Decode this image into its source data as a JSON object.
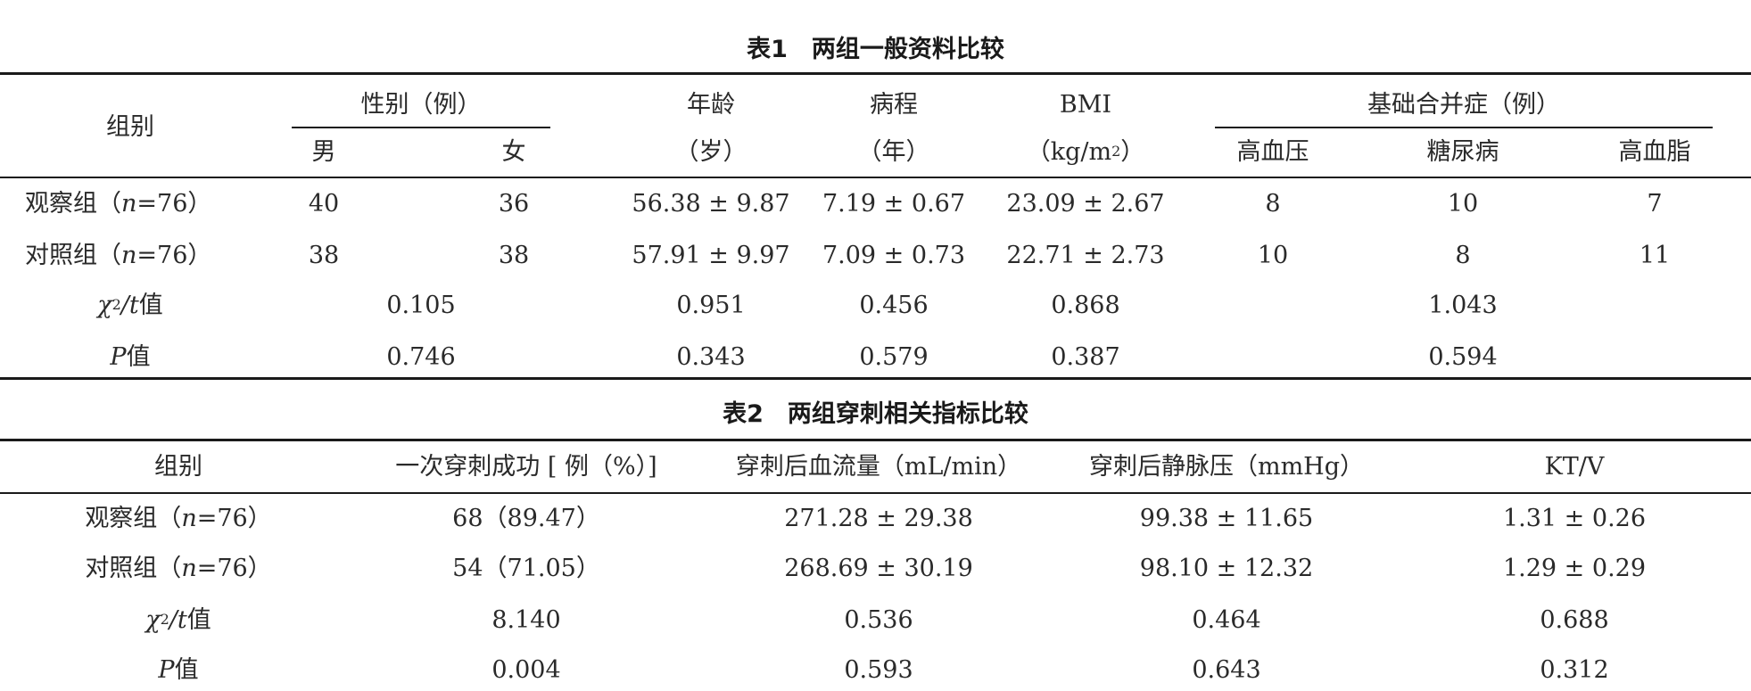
{
  "table1": {
    "caption": "表1　两组一般资料比较",
    "headers": {
      "group": "组别",
      "sex": "性别（例）",
      "male": "男",
      "female": "女",
      "age_top": "年龄",
      "age_unit": "（岁）",
      "course_top": "病程",
      "course_unit": "（年）",
      "bmi_top": "BMI",
      "bmi_unit_pre": "（kg/m",
      "bmi_unit_sup": "2",
      "bmi_unit_post": "）",
      "comorbid": "基础合并症（例）",
      "hypertension": "高血压",
      "diabetes": "糖尿病",
      "hyperlipidemia": "高血脂"
    },
    "obs": {
      "label_pre": "观察组（",
      "label_n": "n",
      "label_post": "=76）",
      "male": "40",
      "female": "36",
      "age": "56.38 ± 9.87",
      "course": "7.19 ± 0.67",
      "bmi": "23.09 ± 2.67",
      "hypertension": "8",
      "diabetes": "10",
      "hyperlipidemia": "7"
    },
    "ctrl": {
      "label_pre": "对照组（",
      "label_n": "n",
      "label_post": "=76）",
      "male": "38",
      "female": "38",
      "age": "57.91 ± 9.97",
      "course": "7.09 ± 0.73",
      "bmi": "22.71 ± 2.73",
      "hypertension": "10",
      "diabetes": "8",
      "hyperlipidemia": "11"
    },
    "chi": {
      "sym": "χ",
      "sup": "2",
      "slash_t": "/t",
      "suffix": " 值",
      "sex": "0.105",
      "age": "0.951",
      "course": "0.456",
      "bmi": "0.868",
      "comorbid": "1.043"
    },
    "p": {
      "sym": "P",
      "suffix": " 值",
      "sex": "0.746",
      "age": "0.343",
      "course": "0.579",
      "bmi": "0.387",
      "comorbid": "0.594"
    }
  },
  "table2": {
    "caption": "表2　两组穿刺相关指标比较",
    "headers": {
      "group": "组别",
      "first_success": "一次穿刺成功 [ 例（%）]",
      "blood_flow": "穿刺后血流量（mL/min）",
      "venous_pressure": "穿刺后静脉压（mmHg）",
      "ktv": "KT/V"
    },
    "obs": {
      "label_pre": "观察组（",
      "label_n": "n",
      "label_post": "=76）",
      "first_success": "68（89.47）",
      "blood_flow": "271.28 ± 29.38",
      "venous_pressure": "99.38 ± 11.65",
      "ktv": "1.31 ± 0.26"
    },
    "ctrl": {
      "label_pre": "对照组（",
      "label_n": "n",
      "label_post": "=76）",
      "first_success": "54（71.05）",
      "blood_flow": "268.69 ± 30.19",
      "venous_pressure": "98.10 ± 12.32",
      "ktv": "1.29 ± 0.29"
    },
    "chi": {
      "sym": "χ",
      "sup": "2",
      "slash_t": "/t",
      "suffix": " 值",
      "first_success": "8.140",
      "blood_flow": "0.536",
      "venous_pressure": "0.464",
      "ktv": "0.688"
    },
    "p": {
      "sym": "P",
      "suffix": " 值",
      "first_success": "0.004",
      "blood_flow": "0.593",
      "venous_pressure": "0.643",
      "ktv": "0.312"
    }
  }
}
